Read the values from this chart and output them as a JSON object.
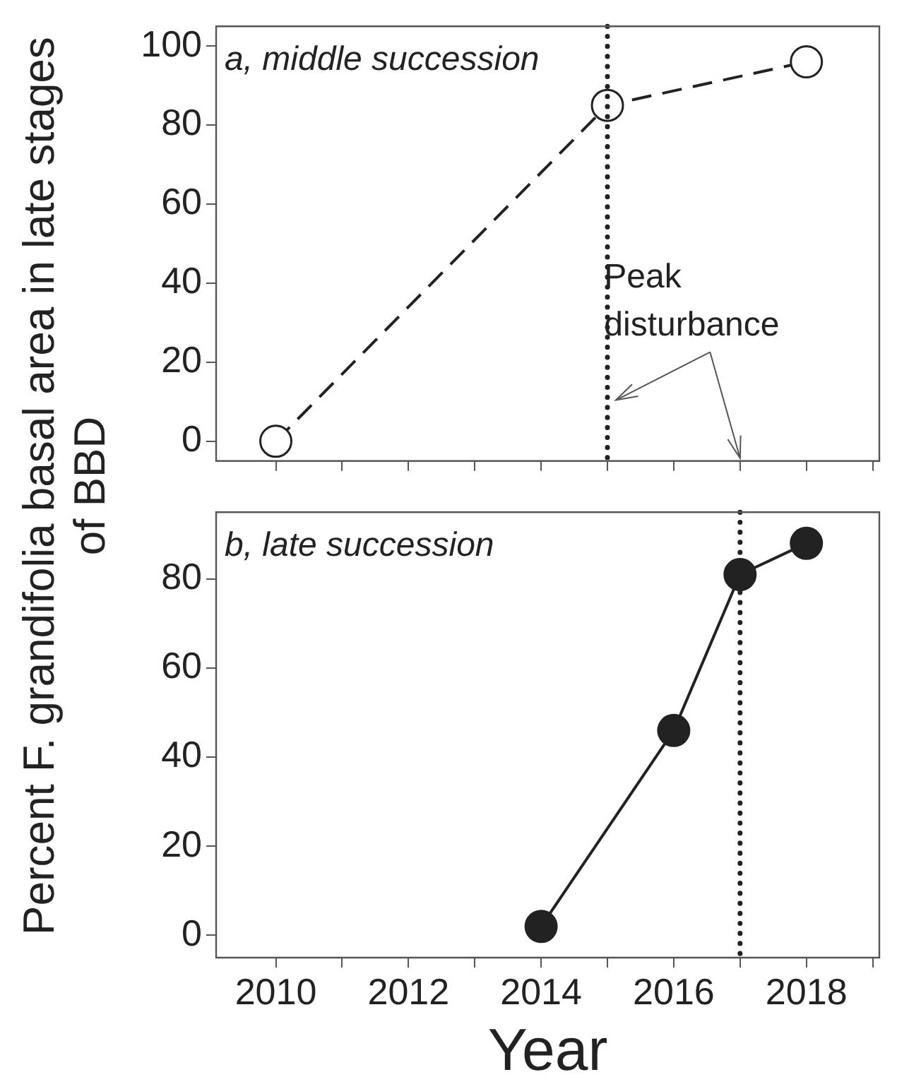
{
  "chart_data": [
    {
      "type": "line",
      "title": "a, middle succession",
      "ylabel": "Percent F. grandifolia basal area in late stages of BBD",
      "x": [
        2010,
        2015,
        2018
      ],
      "series": [
        {
          "color": "#222222",
          "values": [
            0,
            85,
            96
          ]
        }
      ],
      "xlim": [
        2009.1,
        2019.1
      ],
      "xticks": [
        2010,
        {
          "value": 2011,
          "label": null
        },
        2012,
        {
          "value": 2013,
          "label": null
        },
        2014,
        {
          "value": 2015,
          "label": null
        },
        2016,
        {
          "value": 2017,
          "label": null
        },
        2018,
        {
          "value": 2019,
          "label": null
        }
      ],
      "ylim": [
        -5,
        105
      ],
      "yticks": [
        0,
        20,
        40,
        60,
        80,
        100
      ],
      "tick_labels": "y",
      "marker": "circle",
      "line_style": "dashed",
      "ref_lines": [
        {
          "axis": "x",
          "value": 2015,
          "color": "#222222",
          "line_style": "dotted"
        }
      ],
      "annotations": [
        "Peak disturbance"
      ]
    },
    {
      "type": "line",
      "title": "b, late succession",
      "xlabel": "Year",
      "x": [
        2014,
        2016,
        2017,
        2018
      ],
      "series": [
        {
          "color": "#222222",
          "values": [
            2,
            46,
            81,
            88
          ]
        }
      ],
      "xlim": [
        2009.1,
        2019.1
      ],
      "xticks": [
        2010,
        {
          "value": 2011,
          "label": null
        },
        2012,
        {
          "value": 2013,
          "label": null
        },
        2014,
        {
          "value": 2015,
          "label": null
        },
        2016,
        {
          "value": 2017,
          "label": null
        },
        2018,
        {
          "value": 2019,
          "label": null
        }
      ],
      "ylim": [
        -5,
        95
      ],
      "yticks": [
        0,
        20,
        40,
        60,
        80
      ],
      "marker": "circle",
      "line_style": "solid",
      "ref_lines": [
        {
          "axis": "x",
          "value": 2017,
          "color": "#222222",
          "line_style": "dotted"
        }
      ]
    }
  ]
}
